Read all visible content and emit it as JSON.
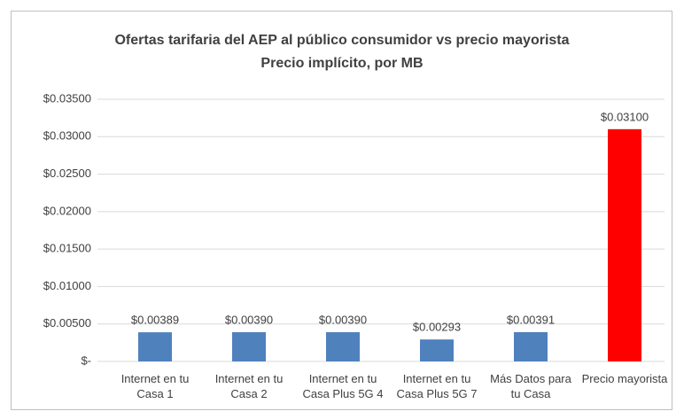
{
  "chart_data": {
    "type": "bar",
    "title": "Ofertas tarifaria del AEP al público  consumidor vs precio mayorista",
    "subtitle": "Precio implícito, por MB",
    "categories": [
      "Internet en tu Casa 1",
      "Internet en tu Casa 2",
      "Internet en tu Casa Plus 5G 4",
      "Internet en tu Casa Plus 5G 7",
      "Más Datos para tu Casa",
      "Precio mayorista"
    ],
    "values": [
      0.00389,
      0.0039,
      0.0039,
      0.00293,
      0.00391,
      0.031
    ],
    "value_labels": [
      "$0.00389",
      "$0.00390",
      "$0.00390",
      "$0.00293",
      "$0.00391",
      "$0.03100"
    ],
    "colors": [
      "#4f81bd",
      "#4f81bd",
      "#4f81bd",
      "#4f81bd",
      "#4f81bd",
      "#ff0000"
    ],
    "ylim": [
      0,
      0.035
    ],
    "yticks": [
      {
        "value": 0,
        "label": "$-"
      },
      {
        "value": 0.005,
        "label": "$0.00500"
      },
      {
        "value": 0.01,
        "label": "$0.01000"
      },
      {
        "value": 0.015,
        "label": "$0.01500"
      },
      {
        "value": 0.02,
        "label": "$0.02000"
      },
      {
        "value": 0.025,
        "label": "$0.02500"
      },
      {
        "value": 0.03,
        "label": "$0.03000"
      },
      {
        "value": 0.035,
        "label": "$0.03500"
      }
    ],
    "grid": true
  }
}
